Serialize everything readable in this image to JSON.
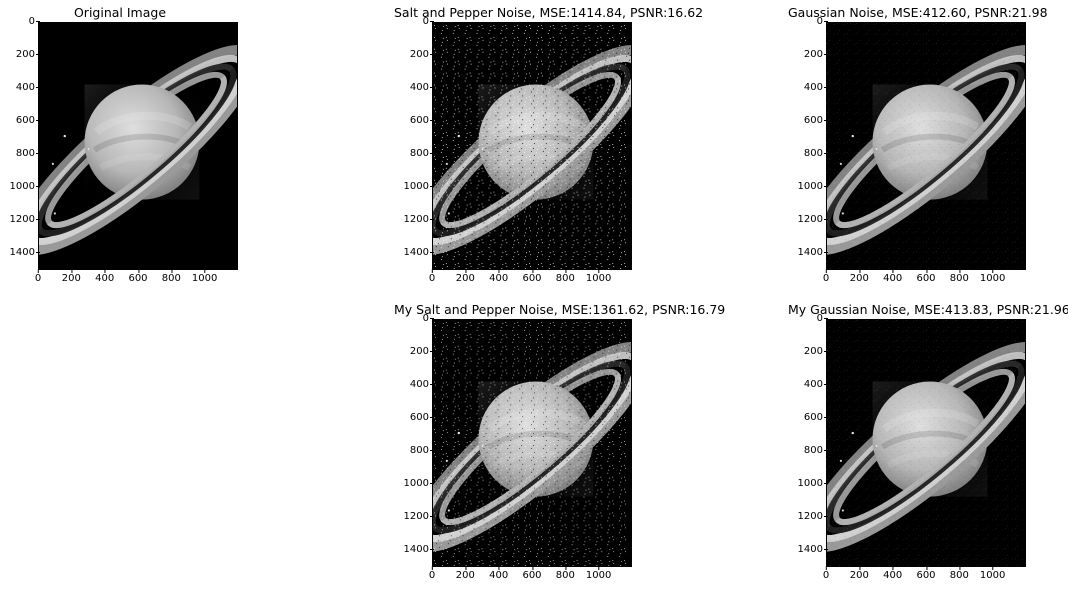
{
  "figure": {
    "panels": [
      {
        "id": "original",
        "title": "Original Image",
        "visible": true
      },
      {
        "id": "sp-noise",
        "title": "Salt and Pepper Noise, MSE:1414.84, PSNR:16.62",
        "visible": true
      },
      {
        "id": "gauss-noise",
        "title": "Gaussian Noise, MSE:412.60, PSNR:21.98",
        "visible": true
      },
      {
        "id": "my-sp-noise",
        "title": "My Salt and Pepper Noise, MSE:1361.62, PSNR:16.79",
        "visible": true
      },
      {
        "id": "my-gauss-noise",
        "title": "My Gaussian Noise, MSE:413.83, PSNR:21.96",
        "visible": true
      }
    ],
    "x_ticks": [
      "0",
      "200",
      "400",
      "600",
      "800",
      "1000"
    ],
    "y_ticks": [
      "0",
      "200",
      "400",
      "600",
      "800",
      "1000",
      "1200",
      "1400"
    ]
  }
}
